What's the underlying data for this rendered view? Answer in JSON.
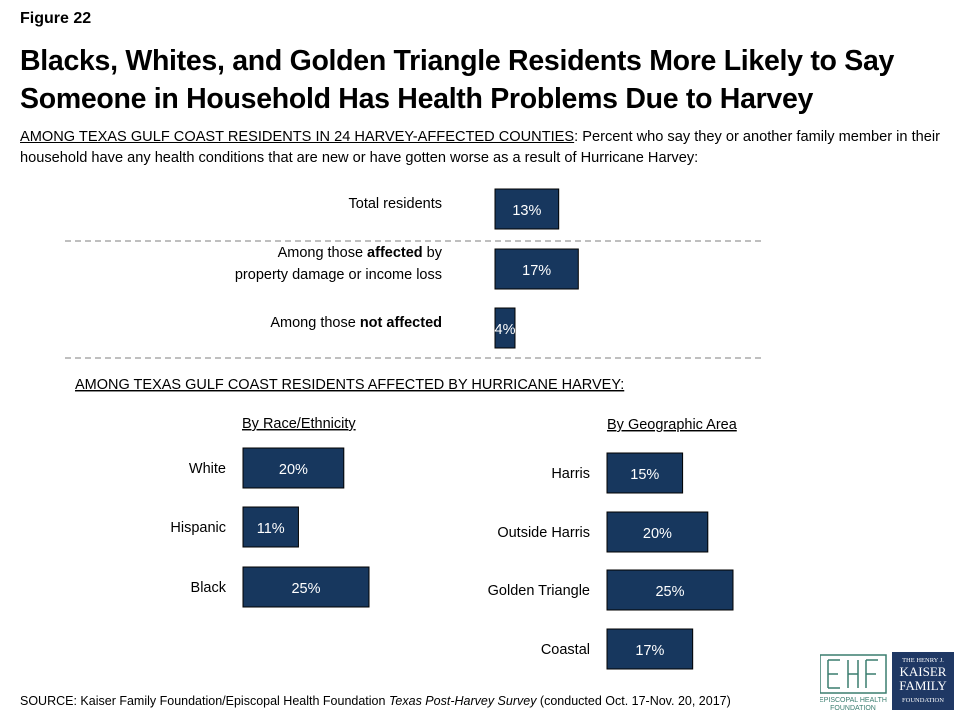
{
  "figure_label": "Figure 22",
  "title": "Blacks, Whites, and Golden Triangle Residents More Likely to Say Someone in Household Has Health Problems Due to Harvey",
  "subtitle": {
    "underlined": "AMONG TEXAS GULF COAST RESIDENTS IN 24 HARVEY-AFFECTED COUNTIES",
    "rest": ": Percent who say they or another family member in their household have any health conditions that are new or have gotten worse as a result of Hurricane Harvey:"
  },
  "section_affected_label": "AMONG TEXAS GULF COAST RESIDENTS AFFECTED BY HURRICANE HARVEY:",
  "colors": {
    "bar": "#17375e",
    "bar_text": "#ffffff",
    "divider": "#7f7f7f"
  },
  "chart_data": [
    {
      "type": "bar",
      "orientation": "horizontal",
      "title": "",
      "categories": [
        "Total residents",
        "Among those affected by property damage or income loss",
        "Among those not affected"
      ],
      "category_lines": [
        [
          [
            {
              "t": "Total residents",
              "b": false
            }
          ]
        ],
        [
          [
            {
              "t": "Among those ",
              "b": false
            },
            {
              "t": "affected",
              "b": true
            },
            {
              "t": " by",
              "b": false
            }
          ],
          [
            {
              "t": "property damage or income loss",
              "b": false
            }
          ]
        ],
        [
          [
            {
              "t": "Among those ",
              "b": false
            },
            {
              "t": "not affected",
              "b": true
            }
          ]
        ]
      ],
      "values": [
        13,
        17,
        4
      ],
      "value_labels": [
        "13%",
        "17%",
        "4%"
      ],
      "unit": "%"
    },
    {
      "type": "bar",
      "orientation": "horizontal",
      "title": "By Race/Ethnicity",
      "categories": [
        "White",
        "Hispanic",
        "Black"
      ],
      "values": [
        20,
        11,
        25
      ],
      "value_labels": [
        "20%",
        "11%",
        "25%"
      ],
      "unit": "%"
    },
    {
      "type": "bar",
      "orientation": "horizontal",
      "title": "By Geographic Area",
      "categories": [
        "Harris",
        "Outside Harris",
        "Golden Triangle",
        "Coastal"
      ],
      "values": [
        15,
        20,
        25,
        17
      ],
      "value_labels": [
        "15%",
        "20%",
        "25%",
        "17%"
      ],
      "unit": "%"
    }
  ],
  "source": {
    "prefix": "SOURCE: Kaiser Family Foundation/Episcopal Health Foundation ",
    "italic": "Texas Post-Harvey Survey",
    "suffix": " (conducted Oct. 17-Nov. 20, 2017)"
  },
  "logos": {
    "ehf": [
      "EPISCOPAL HEALTH",
      "FOUNDATION"
    ],
    "kff": [
      "THE HENRY J.",
      "KAISER",
      "FAMILY",
      "FOUNDATION"
    ]
  }
}
